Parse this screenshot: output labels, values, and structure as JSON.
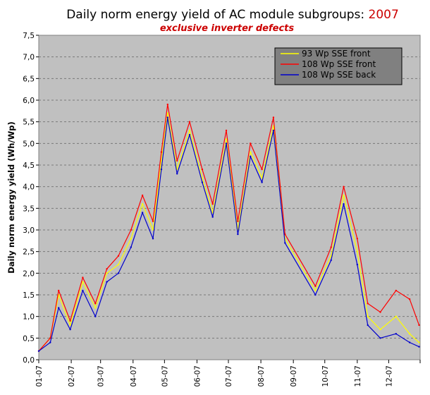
{
  "chart_data": {
    "type": "line",
    "title": "Daily norm energy yield of AC module subgroups: ",
    "title_year": "2007",
    "subtitle": "exclusive inverter defects",
    "ylabel": "Daily norm energy yield (Wh/Wp)",
    "xlabel": "",
    "ylim": [
      0,
      7.5
    ],
    "y_ticks": [
      "0,0",
      "0,5",
      "1,0",
      "1,5",
      "2,0",
      "2,5",
      "3,0",
      "3,5",
      "4,0",
      "4,5",
      "5,0",
      "5,5",
      "6,0",
      "6,5",
      "7,0",
      "7,5"
    ],
    "x_ticks": [
      "01-07",
      "02-07",
      "03-07",
      "04-07",
      "05-07",
      "06-07",
      "07-07",
      "08-07",
      "09-07",
      "10-07",
      "11-07",
      "12-07"
    ],
    "x_unit": "day of year 2007",
    "grid": true,
    "legend_position": "top-right",
    "series": [
      {
        "name": "93 Wp SSE front",
        "color": "#ffff00",
        "values": [
          [
            1,
            0.2
          ],
          [
            12,
            0.5
          ],
          [
            20,
            1.5
          ],
          [
            31,
            0.8
          ],
          [
            43,
            1.8
          ],
          [
            55,
            1.2
          ],
          [
            66,
            2.0
          ],
          [
            77,
            2.2
          ],
          [
            89,
            2.8
          ],
          [
            100,
            3.6
          ],
          [
            110,
            3.0
          ],
          [
            118,
            4.6
          ],
          [
            124,
            5.7
          ],
          [
            133,
            4.4
          ],
          [
            145,
            5.3
          ],
          [
            157,
            4.2
          ],
          [
            167,
            3.4
          ],
          [
            180,
            5.1
          ],
          [
            191,
            3.0
          ],
          [
            203,
            4.8
          ],
          [
            214,
            4.2
          ],
          [
            225,
            5.4
          ],
          [
            236,
            2.8
          ],
          [
            265,
            1.6
          ],
          [
            280,
            2.4
          ],
          [
            292,
            3.8
          ],
          [
            305,
            2.5
          ],
          [
            315,
            1.0
          ],
          [
            327,
            0.7
          ],
          [
            342,
            1.0
          ],
          [
            355,
            0.6
          ],
          [
            364,
            0.4
          ]
        ]
      },
      {
        "name": "108 Wp SSE front",
        "color": "#ff0000",
        "values": [
          [
            1,
            0.2
          ],
          [
            12,
            0.5
          ],
          [
            20,
            1.6
          ],
          [
            31,
            0.9
          ],
          [
            43,
            1.9
          ],
          [
            55,
            1.3
          ],
          [
            66,
            2.1
          ],
          [
            77,
            2.4
          ],
          [
            89,
            3.0
          ],
          [
            100,
            3.8
          ],
          [
            110,
            3.2
          ],
          [
            118,
            4.8
          ],
          [
            124,
            5.9
          ],
          [
            133,
            4.6
          ],
          [
            145,
            5.5
          ],
          [
            157,
            4.4
          ],
          [
            167,
            3.6
          ],
          [
            180,
            5.3
          ],
          [
            191,
            3.2
          ],
          [
            203,
            5.0
          ],
          [
            214,
            4.4
          ],
          [
            225,
            5.6
          ],
          [
            236,
            2.9
          ],
          [
            265,
            1.7
          ],
          [
            280,
            2.6
          ],
          [
            292,
            4.0
          ],
          [
            305,
            2.8
          ],
          [
            315,
            1.3
          ],
          [
            327,
            1.1
          ],
          [
            342,
            1.6
          ],
          [
            355,
            1.4
          ],
          [
            364,
            0.8
          ]
        ]
      },
      {
        "name": "108 Wp SSE back",
        "color": "#0000cc",
        "values": [
          [
            1,
            0.2
          ],
          [
            12,
            0.4
          ],
          [
            20,
            1.2
          ],
          [
            31,
            0.7
          ],
          [
            43,
            1.6
          ],
          [
            55,
            1.0
          ],
          [
            66,
            1.8
          ],
          [
            77,
            2.0
          ],
          [
            89,
            2.6
          ],
          [
            100,
            3.4
          ],
          [
            110,
            2.8
          ],
          [
            118,
            4.4
          ],
          [
            124,
            5.6
          ],
          [
            133,
            4.3
          ],
          [
            145,
            5.2
          ],
          [
            157,
            4.1
          ],
          [
            167,
            3.3
          ],
          [
            180,
            5.0
          ],
          [
            191,
            2.9
          ],
          [
            203,
            4.7
          ],
          [
            214,
            4.1
          ],
          [
            225,
            5.3
          ],
          [
            236,
            2.7
          ],
          [
            265,
            1.5
          ],
          [
            280,
            2.3
          ],
          [
            292,
            3.6
          ],
          [
            305,
            2.2
          ],
          [
            315,
            0.8
          ],
          [
            327,
            0.5
          ],
          [
            342,
            0.6
          ],
          [
            355,
            0.4
          ],
          [
            364,
            0.3
          ]
        ]
      }
    ]
  }
}
